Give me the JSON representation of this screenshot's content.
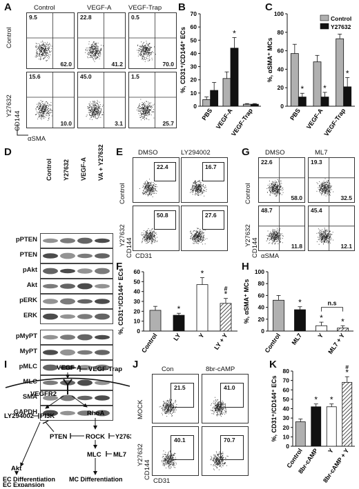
{
  "panels": {
    "A": "A",
    "B": "B",
    "C": "C",
    "D": "D",
    "E": "E",
    "F": "F",
    "G": "G",
    "H": "H",
    "I": "I",
    "J": "J",
    "K": "K"
  },
  "A": {
    "cols": [
      "Control",
      "VEGF-A",
      "VEGF-Trap"
    ],
    "rows": [
      "Control",
      "Y27632"
    ],
    "xaxis": "αSMA",
    "yaxis": "CD144",
    "plots": [
      {
        "ul": "9.5",
        "lr": "62.0"
      },
      {
        "ul": "22.8",
        "lr": "41.2"
      },
      {
        "ul": "0.5",
        "lr": "70.0"
      },
      {
        "ul": "15.6",
        "lr": "10.0"
      },
      {
        "ul": "45.0",
        "lr": "3.1"
      },
      {
        "ul": "1.5",
        "lr": "25.7"
      }
    ]
  },
  "B_chart": {
    "type": "bar",
    "ylabel": "%, CD31⁺/CD144⁺ ECs",
    "categories": [
      "PBS",
      "VEGF-A",
      "VEGF-Trap"
    ],
    "yticks": [
      "0",
      "10",
      "20",
      "30",
      "40",
      "50",
      "60",
      "70"
    ],
    "ylim": [
      0,
      70
    ],
    "series": [
      {
        "color": "#b0b0b0",
        "values": [
          5,
          21,
          1.5
        ],
        "err": [
          2,
          5,
          0.5
        ]
      },
      {
        "color": "#111111",
        "values": [
          12,
          44,
          1.5
        ],
        "err": [
          6,
          8,
          0.5
        ]
      }
    ],
    "stars": [
      {
        "cat": 1,
        "series": 1,
        "text": "*"
      }
    ]
  },
  "C_chart": {
    "type": "bar",
    "ylabel": "%, αSMA⁺ MCs",
    "categories": [
      "PBS",
      "VEGF-A",
      "VEGF-Trap"
    ],
    "yticks": [
      "0",
      "20",
      "40",
      "60",
      "80",
      "100"
    ],
    "ylim": [
      0,
      100
    ],
    "legend": [
      "Control",
      "Y27632"
    ],
    "series": [
      {
        "color": "#b0b0b0",
        "values": [
          57,
          48,
          73
        ],
        "err": [
          10,
          7,
          5
        ]
      },
      {
        "color": "#111111",
        "values": [
          10,
          10,
          21
        ],
        "err": [
          4,
          5,
          10
        ]
      }
    ],
    "stars": [
      {
        "cat": 0,
        "series": 1,
        "text": "*"
      },
      {
        "cat": 1,
        "series": 1,
        "text": "*"
      },
      {
        "cat": 2,
        "series": 1,
        "text": "*"
      }
    ]
  },
  "D": {
    "cols": [
      "Control",
      "Y27632",
      "VEGF-A",
      "VA + Y27632"
    ],
    "bands1": [
      "pPTEN",
      "PTEN",
      "pAkt",
      "Akt",
      "pERK",
      "ERK"
    ],
    "bands2": [
      "pMyPT",
      "MyPT",
      "pMLC",
      "MLC",
      "SMA",
      "GAPDH"
    ]
  },
  "E": {
    "cols": [
      "DMSO",
      "LY294002"
    ],
    "rows": [
      "Control",
      "Y27632"
    ],
    "xaxis": "CD31",
    "yaxis": "CD144",
    "vals": [
      "22.4",
      "16.7",
      "50.8",
      "27.6"
    ]
  },
  "G": {
    "cols": [
      "DMSO",
      "ML7"
    ],
    "rows": [
      "Control",
      "Y27632"
    ],
    "xaxis": "αSMA",
    "yaxis": "CD144",
    "plots": [
      {
        "ul": "22.6",
        "lr": "58.0"
      },
      {
        "ul": "19.3",
        "lr": "32.5"
      },
      {
        "ul": "48.7",
        "lr": "11.8"
      },
      {
        "ul": "45.4",
        "lr": "12.1"
      }
    ]
  },
  "F_chart": {
    "type": "bar",
    "ylabel": "%, CD31⁺/CD144⁺ ECs",
    "categories": [
      "Control",
      "LY",
      "Y",
      "LY + Y"
    ],
    "yticks": [
      "0",
      "10",
      "20",
      "30",
      "40",
      "50",
      "60"
    ],
    "ylim": [
      0,
      60
    ],
    "values": [
      21,
      16,
      47,
      28
    ],
    "err": [
      4,
      2,
      7,
      5
    ],
    "fills": [
      "#b0b0b0",
      "#111111",
      "#ffffff",
      "hatch"
    ],
    "stars": [
      "",
      "*",
      "*",
      "*"
    ],
    "hash": [
      "",
      "",
      "",
      "#"
    ]
  },
  "H_chart": {
    "type": "bar",
    "ylabel": "%, αSMA⁺ MCs",
    "categories": [
      "Control",
      "ML7",
      "Y",
      "ML7 + Y"
    ],
    "yticks": [
      "0",
      "20",
      "40",
      "60",
      "80",
      "100"
    ],
    "ylim": [
      0,
      100
    ],
    "values": [
      52,
      36,
      9,
      5
    ],
    "err": [
      8,
      5,
      6,
      4
    ],
    "fills": [
      "#b0b0b0",
      "#111111",
      "#ffffff",
      "hatch"
    ],
    "stars": [
      "",
      "*",
      "*",
      "*"
    ],
    "ns": "n.s"
  },
  "I": {
    "vegfa": "VEGF-A",
    "trap": "VEGF-Trap",
    "vegfr2": "VEGFR2",
    "ly": "LY294002",
    "pi3k": "PI3K",
    "rhoa": "RhoA",
    "pten": "PTEN",
    "rock": "ROCK",
    "y27632": "Y27632",
    "mlc": "MLC",
    "ml7": "ML7",
    "akt": "Akt",
    "ecdiff": "EC Differentiation",
    "ecexp": "EC Expansion",
    "mcdiff": "MC Differentiation"
  },
  "J": {
    "cols": [
      "Con",
      "8br-cAMP"
    ],
    "rows": [
      "MOCK",
      "Y27632"
    ],
    "xaxis": "CD31",
    "yaxis": "CD144",
    "vals": [
      "21.5",
      "41.0",
      "40.1",
      "70.7"
    ]
  },
  "K_chart": {
    "type": "bar",
    "ylabel": "%, CD31⁺/CD144⁺ ECs",
    "categories": [
      "Control",
      "8br-cAMP",
      "Y",
      "8br-cAMP + Y"
    ],
    "yticks": [
      "0",
      "10",
      "20",
      "30",
      "40",
      "50",
      "60",
      "70",
      "80"
    ],
    "ylim": [
      0,
      80
    ],
    "values": [
      26,
      42,
      42,
      68
    ],
    "err": [
      3,
      3,
      3,
      6
    ],
    "fills": [
      "#b0b0b0",
      "#111111",
      "#ffffff",
      "hatch"
    ],
    "stars": [
      "",
      "*",
      "*",
      "*"
    ],
    "hash": [
      "",
      "",
      "",
      "#"
    ]
  }
}
